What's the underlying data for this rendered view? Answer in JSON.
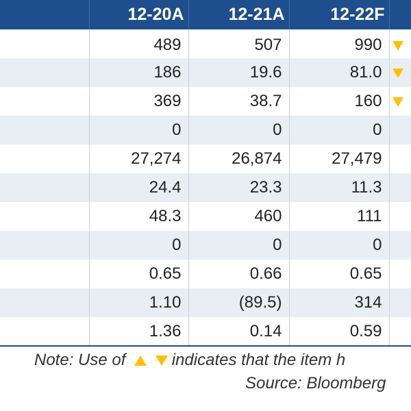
{
  "table": {
    "columns": [
      "",
      "12-20A",
      "12-21A",
      "12-22F",
      ""
    ],
    "rows": [
      {
        "values": [
          "489",
          "507",
          "990"
        ],
        "arrow": "down",
        "shade": "plain"
      },
      {
        "values": [
          "186",
          "19.6",
          "81.0"
        ],
        "arrow": "down",
        "shade": "shaded"
      },
      {
        "values": [
          "369",
          "38.7",
          "160"
        ],
        "arrow": "down",
        "shade": "plain"
      },
      {
        "values": [
          "0",
          "0",
          "0"
        ],
        "arrow": "",
        "shade": "shaded"
      },
      {
        "values": [
          "27,274",
          "26,874",
          "27,479"
        ],
        "arrow": "",
        "shade": "plain"
      },
      {
        "values": [
          "24.4",
          "23.3",
          "11.3"
        ],
        "arrow": "",
        "shade": "shaded"
      },
      {
        "values": [
          "48.3",
          "460",
          "111"
        ],
        "arrow": "",
        "shade": "plain"
      },
      {
        "values": [
          "0",
          "0",
          "0"
        ],
        "arrow": "",
        "shade": "shaded"
      },
      {
        "values": [
          "0.65",
          "0.66",
          "0.65"
        ],
        "arrow": "",
        "shade": "plain"
      },
      {
        "values": [
          "1.10",
          "(89.5)",
          "314"
        ],
        "arrow": "",
        "shade": "shaded"
      },
      {
        "values": [
          "1.36",
          "0.14",
          "0.59"
        ],
        "arrow": "",
        "shade": "plain"
      }
    ]
  },
  "footer": {
    "note_prefix": "Note: Use of",
    "note_suffix": "indicates that the item h",
    "source": "Source: Bloomberg"
  },
  "colors": {
    "header_bg": "#1f4e8c",
    "shaded_row": "#e9edf4",
    "arrow": "#ffc000"
  },
  "icons": {
    "up_arrow": "up-triangle-icon",
    "down_arrow": "down-triangle-icon"
  }
}
